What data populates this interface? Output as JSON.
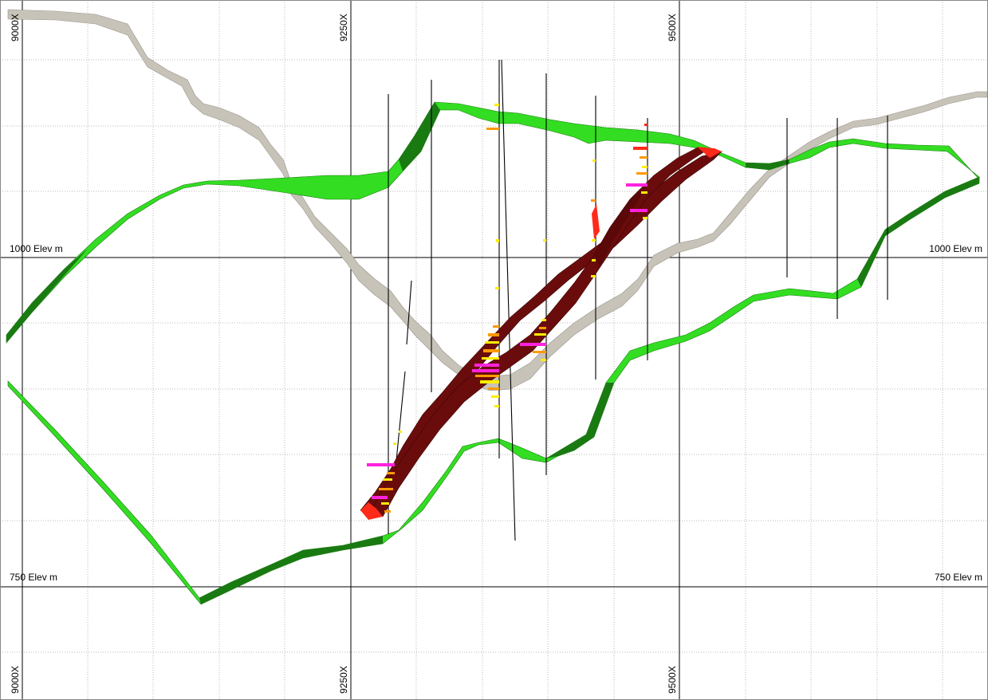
{
  "section_view": {
    "major_x_labels": [
      "9000X",
      "9250X",
      "9500X"
    ],
    "elev_labels": [
      "1000 Elev m",
      "750 Elev m"
    ],
    "colors": {
      "background": "#ffffff",
      "major_grid": "#000000",
      "minor_grid": "#b8b8b8",
      "green_surface": "#33dd22",
      "green_surface_dark": "#116611",
      "grey_surface": "#c8c3b8",
      "ore_body": "#6b0c0c",
      "ore_highlight": "#ff2a1a",
      "assay_magenta": "#ff22dd",
      "assay_orange": "#ff9900",
      "assay_yellow": "#ffee00",
      "drillhole": "#000000"
    }
  }
}
